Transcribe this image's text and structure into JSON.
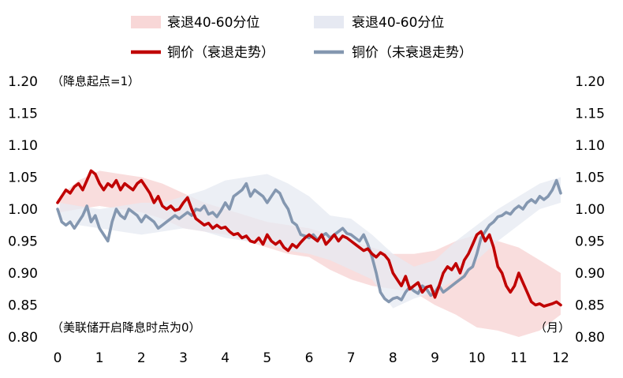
{
  "chart_data": {
    "type": "line",
    "xlim": [
      0,
      12
    ],
    "ylim": [
      0.8,
      1.2
    ],
    "x_ticks": [
      "0",
      "1",
      "2",
      "3",
      "4",
      "5",
      "6",
      "7",
      "8",
      "9",
      "10",
      "11",
      "12"
    ],
    "y_ticks": [
      "0.80",
      "0.85",
      "0.90",
      "0.95",
      "1.00",
      "1.05",
      "1.10",
      "1.15",
      "1.20"
    ],
    "y_ticks_right": [
      "0.80",
      "0.85",
      "0.90",
      "0.95",
      "1.00",
      "1.05",
      "1.10",
      "1.15",
      "1.20"
    ],
    "annotations": {
      "top_left": "（降息起点=1）",
      "bottom_left": "（美联储开启降息时点为0）",
      "bottom_right": "（月）"
    },
    "legend": {
      "placement": "top",
      "items": [
        {
          "label": "衰退40-60分位",
          "kind": "band",
          "color": "#f8d7d7"
        },
        {
          "label": "衰退40-60分位",
          "kind": "band",
          "color": "#e6e9f2"
        },
        {
          "label": "铜价（衰退走势）",
          "kind": "line",
          "color": "#c00000"
        },
        {
          "label": "铜价（未衰退走势）",
          "kind": "line",
          "color": "#8497b0"
        }
      ]
    },
    "bands": [
      {
        "name": "衰退40-60分位",
        "color": "#f8d7d7",
        "x": [
          0.05,
          0.5,
          1.0,
          1.5,
          2.0,
          2.5,
          3.0,
          3.5,
          4.0,
          4.5,
          5.0,
          5.5,
          6.0,
          6.5,
          7.0,
          7.5,
          8.0,
          8.5,
          9.0,
          9.5,
          10.0,
          10.5,
          11.0,
          11.5,
          12.0
        ],
        "lower": [
          0.995,
          1.0,
          1.005,
          1.0,
          0.995,
          0.985,
          0.97,
          0.965,
          0.96,
          0.95,
          0.94,
          0.93,
          0.925,
          0.905,
          0.89,
          0.88,
          0.875,
          0.87,
          0.85,
          0.835,
          0.815,
          0.81,
          0.8,
          0.81,
          0.835
        ],
        "upper": [
          1.02,
          1.045,
          1.06,
          1.055,
          1.05,
          1.04,
          1.025,
          1.01,
          1.0,
          0.99,
          0.98,
          0.975,
          0.97,
          0.96,
          0.95,
          0.94,
          0.93,
          0.93,
          0.935,
          0.95,
          0.96,
          0.95,
          0.94,
          0.92,
          0.9
        ]
      },
      {
        "name": "衰退40-60分位",
        "color": "#e6e9f2",
        "x": [
          0.05,
          0.5,
          1.0,
          1.5,
          2.0,
          2.5,
          3.0,
          3.5,
          4.0,
          4.5,
          5.0,
          5.5,
          6.0,
          6.5,
          7.0,
          7.5,
          8.0,
          8.5,
          9.0,
          9.5,
          10.0,
          10.5,
          11.0,
          11.5,
          12.0
        ],
        "lower": [
          0.985,
          0.975,
          0.97,
          0.965,
          0.96,
          0.965,
          0.97,
          0.965,
          0.955,
          0.95,
          0.945,
          0.935,
          0.93,
          0.92,
          0.905,
          0.89,
          0.845,
          0.86,
          0.87,
          0.89,
          0.92,
          0.95,
          0.975,
          1.0,
          1.01
        ],
        "upper": [
          1.01,
          1.005,
          1.0,
          1.005,
          1.01,
          1.01,
          1.02,
          1.03,
          1.045,
          1.05,
          1.055,
          1.04,
          1.02,
          0.99,
          0.985,
          0.96,
          0.93,
          0.91,
          0.92,
          0.95,
          0.975,
          1.0,
          1.02,
          1.04,
          1.05
        ]
      }
    ],
    "series": [
      {
        "name": "铜价（衰退走势）",
        "color": "#c00000",
        "x": [
          0.0,
          0.1,
          0.2,
          0.3,
          0.4,
          0.5,
          0.6,
          0.7,
          0.8,
          0.9,
          1.0,
          1.1,
          1.2,
          1.3,
          1.4,
          1.5,
          1.6,
          1.7,
          1.8,
          1.9,
          2.0,
          2.1,
          2.2,
          2.3,
          2.4,
          2.5,
          2.6,
          2.7,
          2.8,
          2.9,
          3.0,
          3.1,
          3.2,
          3.3,
          3.4,
          3.5,
          3.6,
          3.7,
          3.8,
          3.9,
          4.0,
          4.1,
          4.2,
          4.3,
          4.4,
          4.5,
          4.6,
          4.7,
          4.8,
          4.9,
          5.0,
          5.1,
          5.2,
          5.3,
          5.4,
          5.5,
          5.6,
          5.7,
          5.8,
          5.9,
          6.0,
          6.1,
          6.2,
          6.3,
          6.4,
          6.5,
          6.6,
          6.7,
          6.8,
          6.9,
          7.0,
          7.1,
          7.2,
          7.3,
          7.4,
          7.5,
          7.6,
          7.7,
          7.8,
          7.9,
          8.0,
          8.1,
          8.2,
          8.3,
          8.4,
          8.5,
          8.6,
          8.7,
          8.8,
          8.9,
          9.0,
          9.1,
          9.2,
          9.3,
          9.4,
          9.5,
          9.6,
          9.7,
          9.8,
          9.9,
          10.0,
          10.1,
          10.2,
          10.3,
          10.4,
          10.5,
          10.6,
          10.7,
          10.8,
          10.9,
          11.0,
          11.1,
          11.2,
          11.3,
          11.4,
          11.5,
          11.6,
          11.7,
          11.8,
          11.9,
          12.0
        ],
        "y": [
          1.01,
          1.02,
          1.03,
          1.025,
          1.035,
          1.04,
          1.03,
          1.045,
          1.06,
          1.055,
          1.04,
          1.03,
          1.04,
          1.035,
          1.045,
          1.03,
          1.04,
          1.035,
          1.03,
          1.04,
          1.045,
          1.035,
          1.025,
          1.01,
          1.02,
          1.005,
          1.0,
          1.005,
          0.998,
          1.0,
          1.01,
          1.018,
          1.0,
          0.985,
          0.98,
          0.975,
          0.978,
          0.97,
          0.975,
          0.97,
          0.972,
          0.965,
          0.96,
          0.962,
          0.955,
          0.958,
          0.95,
          0.948,
          0.955,
          0.945,
          0.96,
          0.95,
          0.945,
          0.95,
          0.94,
          0.935,
          0.945,
          0.94,
          0.948,
          0.955,
          0.96,
          0.955,
          0.95,
          0.96,
          0.945,
          0.952,
          0.96,
          0.95,
          0.958,
          0.955,
          0.95,
          0.945,
          0.94,
          0.935,
          0.938,
          0.93,
          0.925,
          0.932,
          0.928,
          0.92,
          0.9,
          0.89,
          0.88,
          0.895,
          0.875,
          0.88,
          0.885,
          0.87,
          0.878,
          0.88,
          0.862,
          0.88,
          0.9,
          0.91,
          0.905,
          0.915,
          0.9,
          0.92,
          0.93,
          0.945,
          0.96,
          0.965,
          0.95,
          0.96,
          0.94,
          0.91,
          0.9,
          0.88,
          0.87,
          0.88,
          0.9,
          0.885,
          0.87,
          0.855,
          0.85,
          0.852,
          0.848,
          0.85,
          0.852,
          0.855,
          0.85
        ]
      },
      {
        "name": "铜价（未衰退走势）",
        "color": "#8497b0",
        "x": [
          0.0,
          0.1,
          0.2,
          0.3,
          0.4,
          0.5,
          0.6,
          0.7,
          0.8,
          0.9,
          1.0,
          1.1,
          1.2,
          1.3,
          1.4,
          1.5,
          1.6,
          1.7,
          1.8,
          1.9,
          2.0,
          2.1,
          2.2,
          2.3,
          2.4,
          2.5,
          2.6,
          2.7,
          2.8,
          2.9,
          3.0,
          3.1,
          3.2,
          3.3,
          3.4,
          3.5,
          3.6,
          3.7,
          3.8,
          3.9,
          4.0,
          4.1,
          4.2,
          4.3,
          4.4,
          4.5,
          4.6,
          4.7,
          4.8,
          4.9,
          5.0,
          5.1,
          5.2,
          5.3,
          5.4,
          5.5,
          5.6,
          5.7,
          5.8,
          5.9,
          6.0,
          6.1,
          6.2,
          6.3,
          6.4,
          6.5,
          6.6,
          6.7,
          6.8,
          6.9,
          7.0,
          7.1,
          7.2,
          7.3,
          7.4,
          7.5,
          7.6,
          7.7,
          7.8,
          7.9,
          8.0,
          8.1,
          8.2,
          8.3,
          8.4,
          8.5,
          8.6,
          8.7,
          8.8,
          8.9,
          9.0,
          9.1,
          9.2,
          9.3,
          9.4,
          9.5,
          9.6,
          9.7,
          9.8,
          9.9,
          10.0,
          10.1,
          10.2,
          10.3,
          10.4,
          10.5,
          10.6,
          10.7,
          10.8,
          10.9,
          11.0,
          11.1,
          11.2,
          11.3,
          11.4,
          11.5,
          11.6,
          11.7,
          11.8,
          11.9,
          12.0
        ],
        "y": [
          1.0,
          0.98,
          0.975,
          0.98,
          0.97,
          0.98,
          0.99,
          1.005,
          0.98,
          0.99,
          0.97,
          0.96,
          0.95,
          0.98,
          1.0,
          0.99,
          0.985,
          1.0,
          0.995,
          0.99,
          0.98,
          0.99,
          0.985,
          0.98,
          0.97,
          0.975,
          0.98,
          0.985,
          0.99,
          0.985,
          0.99,
          0.995,
          0.99,
          1.0,
          0.998,
          1.005,
          0.992,
          0.995,
          0.988,
          0.998,
          1.01,
          1.0,
          1.02,
          1.025,
          1.03,
          1.04,
          1.02,
          1.03,
          1.025,
          1.02,
          1.01,
          1.02,
          1.03,
          1.025,
          1.01,
          1.0,
          0.98,
          0.975,
          0.96,
          0.958,
          0.955,
          0.96,
          0.952,
          0.958,
          0.962,
          0.955,
          0.96,
          0.965,
          0.97,
          0.962,
          0.96,
          0.955,
          0.95,
          0.96,
          0.945,
          0.925,
          0.9,
          0.87,
          0.86,
          0.855,
          0.86,
          0.862,
          0.858,
          0.87,
          0.878,
          0.872,
          0.868,
          0.88,
          0.875,
          0.865,
          0.87,
          0.88,
          0.87,
          0.875,
          0.88,
          0.885,
          0.89,
          0.895,
          0.905,
          0.91,
          0.93,
          0.955,
          0.965,
          0.975,
          0.98,
          0.988,
          0.99,
          0.995,
          0.992,
          1.0,
          1.005,
          1.0,
          1.01,
          1.015,
          1.01,
          1.02,
          1.015,
          1.02,
          1.03,
          1.045,
          1.025
        ]
      }
    ]
  }
}
